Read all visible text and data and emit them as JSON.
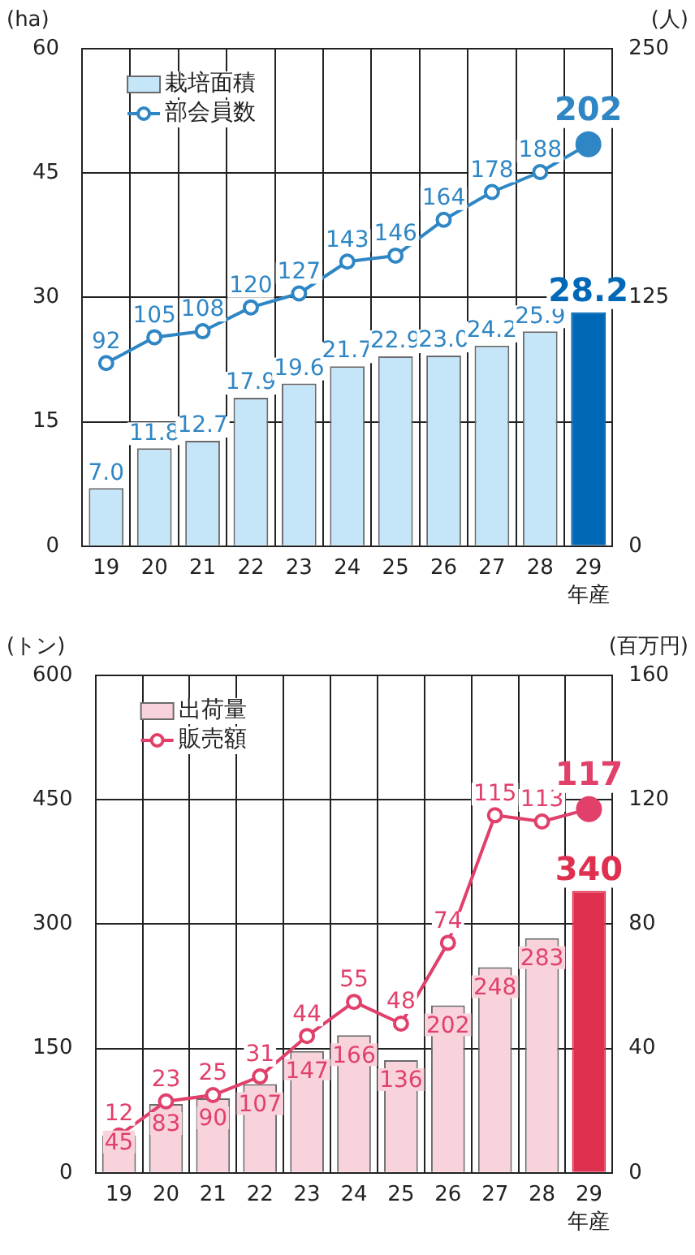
{
  "chart_data": [
    {
      "type": "bar",
      "ylabel": "(ha)",
      "y2label": "(人)",
      "xlabel": "年産",
      "categories": [
        "19",
        "20",
        "21",
        "22",
        "23",
        "24",
        "25",
        "26",
        "27",
        "28",
        "29"
      ],
      "series": [
        {
          "name": "栽培面積",
          "color": "#c5e6f8",
          "colors": [
            "#c5e6f8",
            "#c5e6f8",
            "#c5e6f8",
            "#c5e6f8",
            "#c5e6f8",
            "#c5e6f8",
            "#c5e6f8",
            "#c5e6f8",
            "#c5e6f8",
            "#c5e6f8",
            "#0068b7"
          ],
          "values": [
            7.0,
            11.8,
            12.7,
            17.9,
            19.6,
            21.7,
            22.9,
            23.0,
            24.2,
            25.9,
            28.2
          ],
          "value_labels": [
            "7.0",
            "11.8",
            "12.7",
            "17.9",
            "19.6",
            "21.7",
            "22.9",
            "23.0",
            "24.2",
            "25.9",
            "28.2"
          ]
        },
        {
          "name": "部会員数",
          "type": "line",
          "axis": "y2",
          "color": "#2f86c4",
          "values": [
            92,
            105,
            108,
            120,
            127,
            143,
            146,
            164,
            178,
            188,
            202
          ]
        }
      ],
      "ylim": [
        0,
        60
      ],
      "yticks": [
        0,
        15,
        30,
        45,
        60
      ],
      "y2lim": [
        0,
        250
      ],
      "y2ticks": [
        0,
        125,
        250
      ],
      "grid": true,
      "legend": "top left",
      "marker": "circle",
      "data_labels": true
    },
    {
      "type": "bar",
      "ylabel": "(トン)",
      "y2label": "(百万円)",
      "xlabel": "年産",
      "categories": [
        "19",
        "20",
        "21",
        "22",
        "23",
        "24",
        "25",
        "26",
        "27",
        "28",
        "29"
      ],
      "series": [
        {
          "name": "出荷量",
          "color": "#f8d3dc",
          "colors": [
            "#f8d3dc",
            "#f8d3dc",
            "#f8d3dc",
            "#f8d3dc",
            "#f8d3dc",
            "#f8d3dc",
            "#f8d3dc",
            "#f8d3dc",
            "#f8d3dc",
            "#f8d3dc",
            "#e0304f"
          ],
          "values": [
            45,
            83,
            90,
            107,
            147,
            166,
            136,
            202,
            248,
            283,
            340
          ]
        },
        {
          "name": "販売額",
          "type": "line",
          "axis": "y2",
          "color": "#e0406a",
          "values": [
            12,
            23,
            25,
            31,
            44,
            55,
            48,
            74,
            115,
            113,
            117
          ]
        }
      ],
      "ylim": [
        0,
        600
      ],
      "yticks": [
        0,
        150,
        300,
        450,
        600
      ],
      "y2lim": [
        0,
        160
      ],
      "y2ticks": [
        0,
        40,
        80,
        120,
        160
      ],
      "grid": true,
      "legend": "top left",
      "marker": "circle",
      "data_labels": true
    }
  ]
}
